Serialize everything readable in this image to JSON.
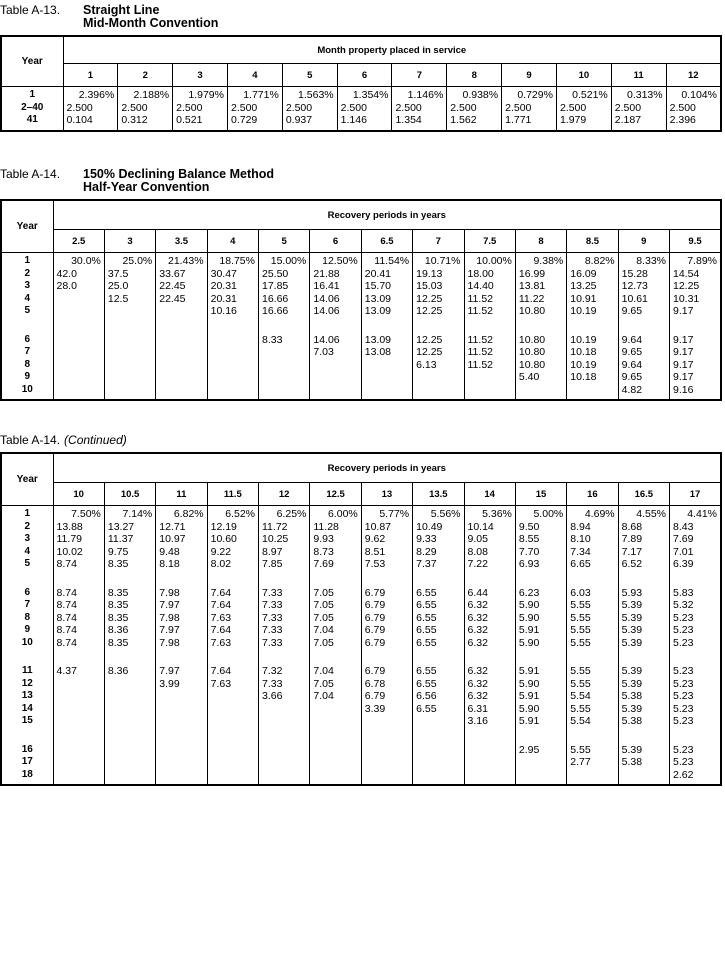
{
  "tables": [
    {
      "label": "Table A-13.",
      "title_lines": [
        "Straight Line",
        "Mid-Month Convention"
      ],
      "subtitle": "",
      "year_header": "Year",
      "group_header": "Month property placed in service",
      "columns": [
        "1",
        "2",
        "3",
        "4",
        "5",
        "6",
        "7",
        "8",
        "9",
        "10",
        "11",
        "12"
      ],
      "row_groups": [
        [
          {
            "year": "1",
            "values": [
              "2.396%",
              "2.188%",
              "1.979%",
              "1.771%",
              "1.563%",
              "1.354%",
              "1.146%",
              "0.938%",
              "0.729%",
              "0.521%",
              "0.313%",
              "0.104%"
            ]
          },
          {
            "year": "2–40",
            "values": [
              "2.500",
              "2.500",
              "2.500",
              "2.500",
              "2.500",
              "2.500",
              "2.500",
              "2.500",
              "2.500",
              "2.500",
              "2.500",
              "2.500"
            ]
          },
          {
            "year": "41",
            "values": [
              "0.104",
              "0.312",
              "0.521",
              "0.729",
              "0.937",
              "1.146",
              "1.354",
              "1.562",
              "1.771",
              "1.979",
              "2.187",
              "2.396"
            ]
          }
        ]
      ]
    },
    {
      "label": "Table A-14.",
      "title_lines": [
        "150% Declining Balance Method",
        "Half-Year Convention"
      ],
      "subtitle": "",
      "year_header": "Year",
      "group_header": "Recovery periods in years",
      "columns": [
        "2.5",
        "3",
        "3.5",
        "4",
        "5",
        "6",
        "6.5",
        "7",
        "7.5",
        "8",
        "8.5",
        "9",
        "9.5"
      ],
      "row_groups": [
        [
          {
            "year": "1",
            "values": [
              "30.0%",
              "25.0%",
              "21.43%",
              "18.75%",
              "15.00%",
              "12.50%",
              "11.54%",
              "10.71%",
              "10.00%",
              "9.38%",
              "8.82%",
              "8.33%",
              "7.89%"
            ]
          },
          {
            "year": "2",
            "values": [
              "42.0",
              "37.5",
              "33.67",
              "30.47",
              "25.50",
              "21.88",
              "20.41",
              "19.13",
              "18.00",
              "16.99",
              "16.09",
              "15.28",
              "14.54"
            ]
          },
          {
            "year": "3",
            "values": [
              "28.0",
              "25.0",
              "22.45",
              "20.31",
              "17.85",
              "16.41",
              "15.70",
              "15.03",
              "14.40",
              "13.81",
              "13.25",
              "12.73",
              "12.25"
            ]
          },
          {
            "year": "4",
            "values": [
              "",
              "12.5",
              "22.45",
              "20.31",
              "16.66",
              "14.06",
              "13.09",
              "12.25",
              "11.52",
              "11.22",
              "10.91",
              "10.61",
              "10.31"
            ]
          },
          {
            "year": "5",
            "values": [
              "",
              "",
              "",
              "10.16",
              "16.66",
              "14.06",
              "13.09",
              "12.25",
              "11.52",
              "10.80",
              "10.19",
              "9.65",
              "9.17"
            ]
          }
        ],
        [
          {
            "year": "6",
            "values": [
              "",
              "",
              "",
              "",
              "8.33",
              "14.06",
              "13.09",
              "12.25",
              "11.52",
              "10.80",
              "10.19",
              "9.64",
              "9.17"
            ]
          },
          {
            "year": "7",
            "values": [
              "",
              "",
              "",
              "",
              "",
              "7.03",
              "13.08",
              "12.25",
              "11.52",
              "10.80",
              "10.18",
              "9.65",
              "9.17"
            ]
          },
          {
            "year": "8",
            "values": [
              "",
              "",
              "",
              "",
              "",
              "",
              "",
              "6.13",
              "11.52",
              "10.80",
              "10.19",
              "9.64",
              "9.17"
            ]
          },
          {
            "year": "9",
            "values": [
              "",
              "",
              "",
              "",
              "",
              "",
              "",
              "",
              "",
              "5.40",
              "10.18",
              "9.65",
              "9.17"
            ]
          },
          {
            "year": "10",
            "values": [
              "",
              "",
              "",
              "",
              "",
              "",
              "",
              "",
              "",
              "",
              "",
              "4.82",
              "9.16"
            ]
          }
        ]
      ]
    },
    {
      "label": "Table A-14.",
      "title_lines": [],
      "subtitle": "(Continued)",
      "year_header": "Year",
      "group_header": "Recovery periods in years",
      "columns": [
        "10",
        "10.5",
        "11",
        "11.5",
        "12",
        "12.5",
        "13",
        "13.5",
        "14",
        "15",
        "16",
        "16.5",
        "17"
      ],
      "row_groups": [
        [
          {
            "year": "1",
            "values": [
              "7.50%",
              "7.14%",
              "6.82%",
              "6.52%",
              "6.25%",
              "6.00%",
              "5.77%",
              "5.56%",
              "5.36%",
              "5.00%",
              "4.69%",
              "4.55%",
              "4.41%"
            ]
          },
          {
            "year": "2",
            "values": [
              "13.88",
              "13.27",
              "12.71",
              "12.19",
              "11.72",
              "11.28",
              "10.87",
              "10.49",
              "10.14",
              "9.50",
              "8.94",
              "8.68",
              "8.43"
            ]
          },
          {
            "year": "3",
            "values": [
              "11.79",
              "11.37",
              "10.97",
              "10.60",
              "10.25",
              "9.93",
              "9.62",
              "9.33",
              "9.05",
              "8.55",
              "8.10",
              "7.89",
              "7.69"
            ]
          },
          {
            "year": "4",
            "values": [
              "10.02",
              "9.75",
              "9.48",
              "9.22",
              "8.97",
              "8.73",
              "8.51",
              "8.29",
              "8.08",
              "7.70",
              "7.34",
              "7.17",
              "7.01"
            ]
          },
          {
            "year": "5",
            "values": [
              "8.74",
              "8.35",
              "8.18",
              "8.02",
              "7.85",
              "7.69",
              "7.53",
              "7.37",
              "7.22",
              "6.93",
              "6.65",
              "6.52",
              "6.39"
            ]
          }
        ],
        [
          {
            "year": "6",
            "values": [
              "8.74",
              "8.35",
              "7.98",
              "7.64",
              "7.33",
              "7.05",
              "6.79",
              "6.55",
              "6.44",
              "6.23",
              "6.03",
              "5.93",
              "5.83"
            ]
          },
          {
            "year": "7",
            "values": [
              "8.74",
              "8.35",
              "7.97",
              "7.64",
              "7.33",
              "7.05",
              "6.79",
              "6.55",
              "6.32",
              "5.90",
              "5.55",
              "5.39",
              "5.32"
            ]
          },
          {
            "year": "8",
            "values": [
              "8.74",
              "8.35",
              "7.98",
              "7.63",
              "7.33",
              "7.05",
              "6.79",
              "6.55",
              "6.32",
              "5.90",
              "5.55",
              "5.39",
              "5.23"
            ]
          },
          {
            "year": "9",
            "values": [
              "8.74",
              "8.36",
              "7.97",
              "7.64",
              "7.33",
              "7.04",
              "6.79",
              "6.55",
              "6.32",
              "5.91",
              "5.55",
              "5.39",
              "5.23"
            ]
          },
          {
            "year": "10",
            "values": [
              "8.74",
              "8.35",
              "7.98",
              "7.63",
              "7.33",
              "7.05",
              "6.79",
              "6.55",
              "6.32",
              "5.90",
              "5.55",
              "5.39",
              "5.23"
            ]
          }
        ],
        [
          {
            "year": "11",
            "values": [
              "4.37",
              "8.36",
              "7.97",
              "7.64",
              "7.32",
              "7.04",
              "6.79",
              "6.55",
              "6.32",
              "5.91",
              "5.55",
              "5.39",
              "5.23"
            ]
          },
          {
            "year": "12",
            "values": [
              "",
              "",
              "3.99",
              "7.63",
              "7.33",
              "7.05",
              "6.78",
              "6.55",
              "6.32",
              "5.90",
              "5.55",
              "5.39",
              "5.23"
            ]
          },
          {
            "year": "13",
            "values": [
              "",
              "",
              "",
              "",
              "3.66",
              "7.04",
              "6.79",
              "6.56",
              "6.32",
              "5.91",
              "5.54",
              "5.38",
              "5.23"
            ]
          },
          {
            "year": "14",
            "values": [
              "",
              "",
              "",
              "",
              "",
              "",
              "3.39",
              "6.55",
              "6.31",
              "5.90",
              "5.55",
              "5.39",
              "5.23"
            ]
          },
          {
            "year": "15",
            "values": [
              "",
              "",
              "",
              "",
              "",
              "",
              "",
              "",
              "3.16",
              "5.91",
              "5.54",
              "5.38",
              "5.23"
            ]
          }
        ],
        [
          {
            "year": "16",
            "values": [
              "",
              "",
              "",
              "",
              "",
              "",
              "",
              "",
              "",
              "2.95",
              "5.55",
              "5.39",
              "5.23"
            ]
          },
          {
            "year": "17",
            "values": [
              "",
              "",
              "",
              "",
              "",
              "",
              "",
              "",
              "",
              "",
              "2.77",
              "5.38",
              "5.23"
            ]
          },
          {
            "year": "18",
            "values": [
              "",
              "",
              "",
              "",
              "",
              "",
              "",
              "",
              "",
              "",
              "",
              "",
              "2.62"
            ]
          }
        ]
      ]
    }
  ]
}
